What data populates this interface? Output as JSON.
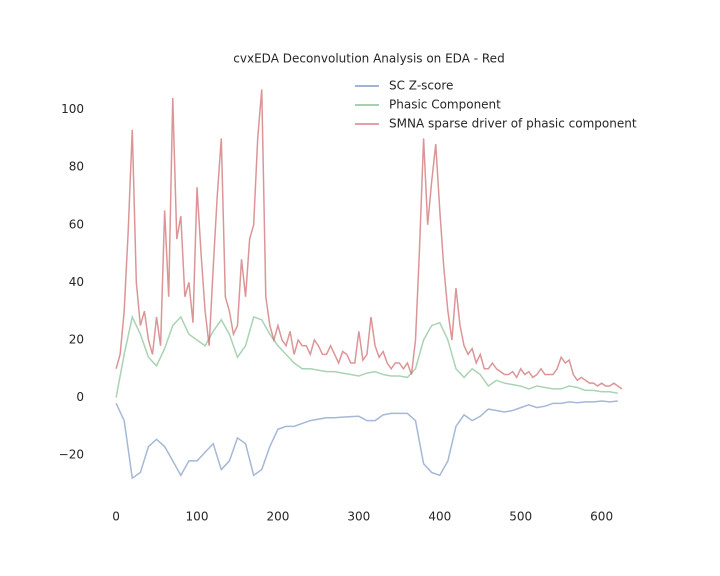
{
  "chart_data": {
    "type": "line",
    "title": "cvxEDA Deconvolution Analysis on EDA - Red",
    "xlim": [
      -10,
      640
    ],
    "ylim": [
      -38,
      112
    ],
    "xticks": [
      0,
      100,
      200,
      300,
      400,
      500,
      600
    ],
    "yticks": [
      {
        "value": -20,
        "label": "−20"
      },
      0,
      20,
      40,
      60,
      80,
      100
    ],
    "grid": false,
    "legend": "upper right",
    "series": [
      {
        "name": "SC Z-score",
        "color": "#4c72b0",
        "x": [
          0,
          10,
          20,
          30,
          40,
          50,
          60,
          70,
          80,
          90,
          100,
          110,
          120,
          130,
          140,
          150,
          160,
          170,
          180,
          190,
          200,
          210,
          220,
          230,
          240,
          250,
          260,
          270,
          280,
          290,
          300,
          310,
          320,
          330,
          340,
          350,
          360,
          370,
          380,
          390,
          400,
          410,
          420,
          430,
          440,
          450,
          460,
          470,
          480,
          490,
          500,
          510,
          520,
          530,
          540,
          550,
          560,
          570,
          580,
          590,
          600,
          610,
          620
        ],
        "values": [
          -2,
          -8,
          -28,
          -26,
          -17,
          -14.5,
          -17,
          -22,
          -27,
          -22,
          -22,
          -19,
          -16,
          -25,
          -22,
          -14,
          -16,
          -27,
          -25,
          -17,
          -11,
          -10,
          -10,
          -9,
          -8,
          -7.5,
          -7,
          -7,
          -6.8,
          -6.6,
          -6.5,
          -8,
          -8,
          -6,
          -5.5,
          -5.5,
          -5.5,
          -8,
          -23,
          -26,
          -27,
          -22,
          -10,
          -6,
          -8,
          -6.5,
          -4,
          -4.5,
          -5,
          -4.5,
          -3.5,
          -2.5,
          -3.5,
          -3,
          -2,
          -2,
          -1.5,
          -1.8,
          -1.5,
          -1.5,
          -1.2,
          -1.5,
          -1.2
        ]
      },
      {
        "name": "Phasic Component",
        "color": "#55a868",
        "x": [
          0,
          10,
          20,
          30,
          40,
          50,
          60,
          70,
          80,
          90,
          100,
          110,
          120,
          130,
          140,
          150,
          160,
          170,
          180,
          190,
          200,
          210,
          220,
          230,
          240,
          250,
          260,
          270,
          280,
          290,
          300,
          310,
          320,
          330,
          340,
          350,
          360,
          370,
          380,
          390,
          400,
          410,
          420,
          430,
          440,
          450,
          460,
          470,
          480,
          490,
          500,
          510,
          520,
          530,
          540,
          550,
          560,
          570,
          580,
          590,
          600,
          610,
          620
        ],
        "values": [
          0,
          15,
          28,
          22,
          14,
          11,
          17,
          25,
          28,
          22,
          20,
          18,
          23,
          27,
          22,
          14,
          18,
          28,
          27,
          22,
          18,
          15,
          12,
          10,
          10,
          9.5,
          9,
          9,
          8.5,
          8,
          7.5,
          8.5,
          9,
          8,
          7.5,
          7.5,
          7,
          10,
          20,
          25,
          26,
          20,
          10,
          7,
          10,
          8,
          4,
          6,
          5,
          4.5,
          4,
          3,
          4,
          3.5,
          3,
          3,
          4,
          3.5,
          2.5,
          2.5,
          2,
          2,
          1.5
        ]
      },
      {
        "name": "SMNA sparse driver of phasic component",
        "color": "#c44e52",
        "x": [
          0,
          5,
          10,
          15,
          20,
          25,
          30,
          35,
          40,
          45,
          50,
          55,
          60,
          65,
          70,
          75,
          80,
          85,
          90,
          95,
          100,
          105,
          110,
          115,
          120,
          125,
          130,
          135,
          140,
          145,
          150,
          155,
          160,
          165,
          170,
          175,
          180,
          185,
          190,
          195,
          200,
          205,
          210,
          215,
          220,
          225,
          230,
          235,
          240,
          245,
          250,
          255,
          260,
          265,
          270,
          275,
          280,
          285,
          290,
          295,
          300,
          305,
          310,
          315,
          320,
          325,
          330,
          335,
          340,
          345,
          350,
          355,
          360,
          365,
          370,
          375,
          380,
          385,
          390,
          395,
          400,
          405,
          410,
          415,
          420,
          425,
          430,
          435,
          440,
          445,
          450,
          455,
          460,
          465,
          470,
          475,
          480,
          485,
          490,
          495,
          500,
          505,
          510,
          515,
          520,
          525,
          530,
          535,
          540,
          545,
          550,
          555,
          560,
          565,
          570,
          575,
          580,
          585,
          590,
          595,
          600,
          605,
          610,
          615,
          620,
          625
        ],
        "values": [
          10,
          15,
          30,
          58,
          93,
          40,
          25,
          30,
          20,
          15,
          28,
          18,
          65,
          35,
          104,
          55,
          63,
          35,
          40,
          26,
          73,
          50,
          30,
          18,
          45,
          70,
          90,
          35,
          30,
          22,
          25,
          48,
          35,
          55,
          60,
          90,
          107,
          35,
          25,
          20,
          25,
          20,
          18,
          23,
          15,
          20,
          18,
          18,
          15,
          20,
          18,
          15,
          15,
          18,
          15,
          12,
          16,
          15,
          12,
          12,
          23,
          13,
          15,
          28,
          18,
          14,
          16,
          12,
          10,
          12,
          12,
          10,
          12,
          8,
          20,
          52,
          90,
          60,
          75,
          88,
          65,
          45,
          30,
          20,
          38,
          25,
          18,
          15,
          17,
          12,
          15,
          10,
          10,
          12,
          10,
          9,
          8,
          8,
          9,
          7,
          10,
          8,
          9,
          7,
          8,
          10,
          8,
          8,
          8,
          10,
          14,
          12,
          13,
          8,
          6,
          7,
          6,
          5,
          5,
          4,
          5,
          4,
          4,
          5,
          4,
          3
        ]
      }
    ]
  }
}
